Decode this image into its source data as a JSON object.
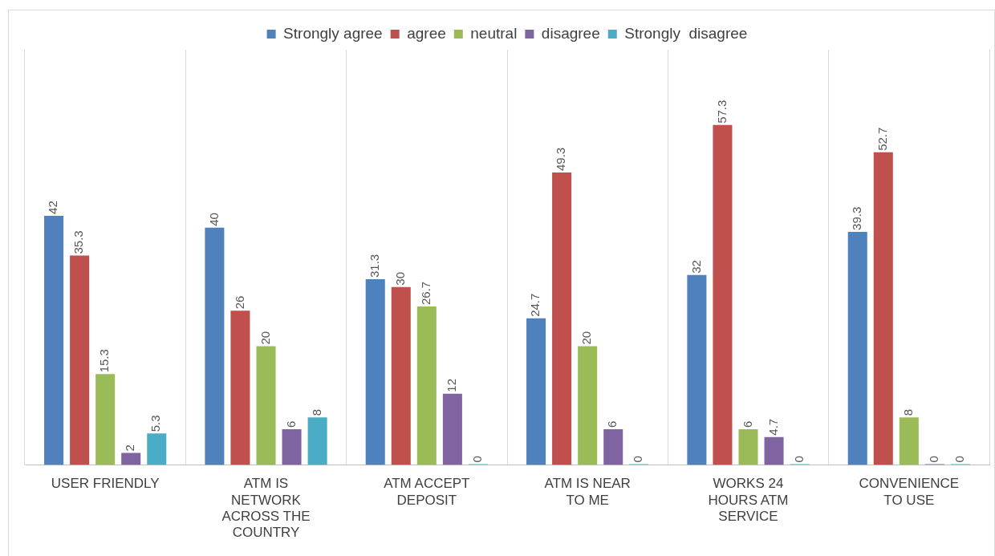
{
  "chart_data": {
    "type": "bar",
    "categories": [
      "USER FRIENDLY",
      "ATM IS NETWORK ACROSS THE COUNTRY",
      "ATM ACCEPT DEPOSIT",
      "ATM IS NEAR TO ME",
      "WORKS 24 HOURS ATM SERVICE",
      "CONVENIENCE TO USE"
    ],
    "series": [
      {
        "name": "Strongly agree",
        "color": "#4f81bd",
        "values": [
          42,
          40,
          31.3,
          24.7,
          32,
          39.3
        ]
      },
      {
        "name": "agree",
        "color": "#c0504d",
        "values": [
          35.3,
          26,
          30,
          49.3,
          57.3,
          52.7
        ]
      },
      {
        "name": "neutral",
        "color": "#9bbb59",
        "values": [
          15.3,
          20,
          26.7,
          20,
          6,
          8
        ]
      },
      {
        "name": "disagree",
        "color": "#8064a2",
        "values": [
          2,
          6,
          12,
          6,
          4.7,
          0
        ]
      },
      {
        "name": "Strongly  disagree",
        "color": "#4bacc6",
        "values": [
          5.3,
          8,
          0,
          0,
          0,
          0
        ]
      }
    ],
    "data_labels": true,
    "legend": "top",
    "grid": "x",
    "tick_labels": "x"
  }
}
